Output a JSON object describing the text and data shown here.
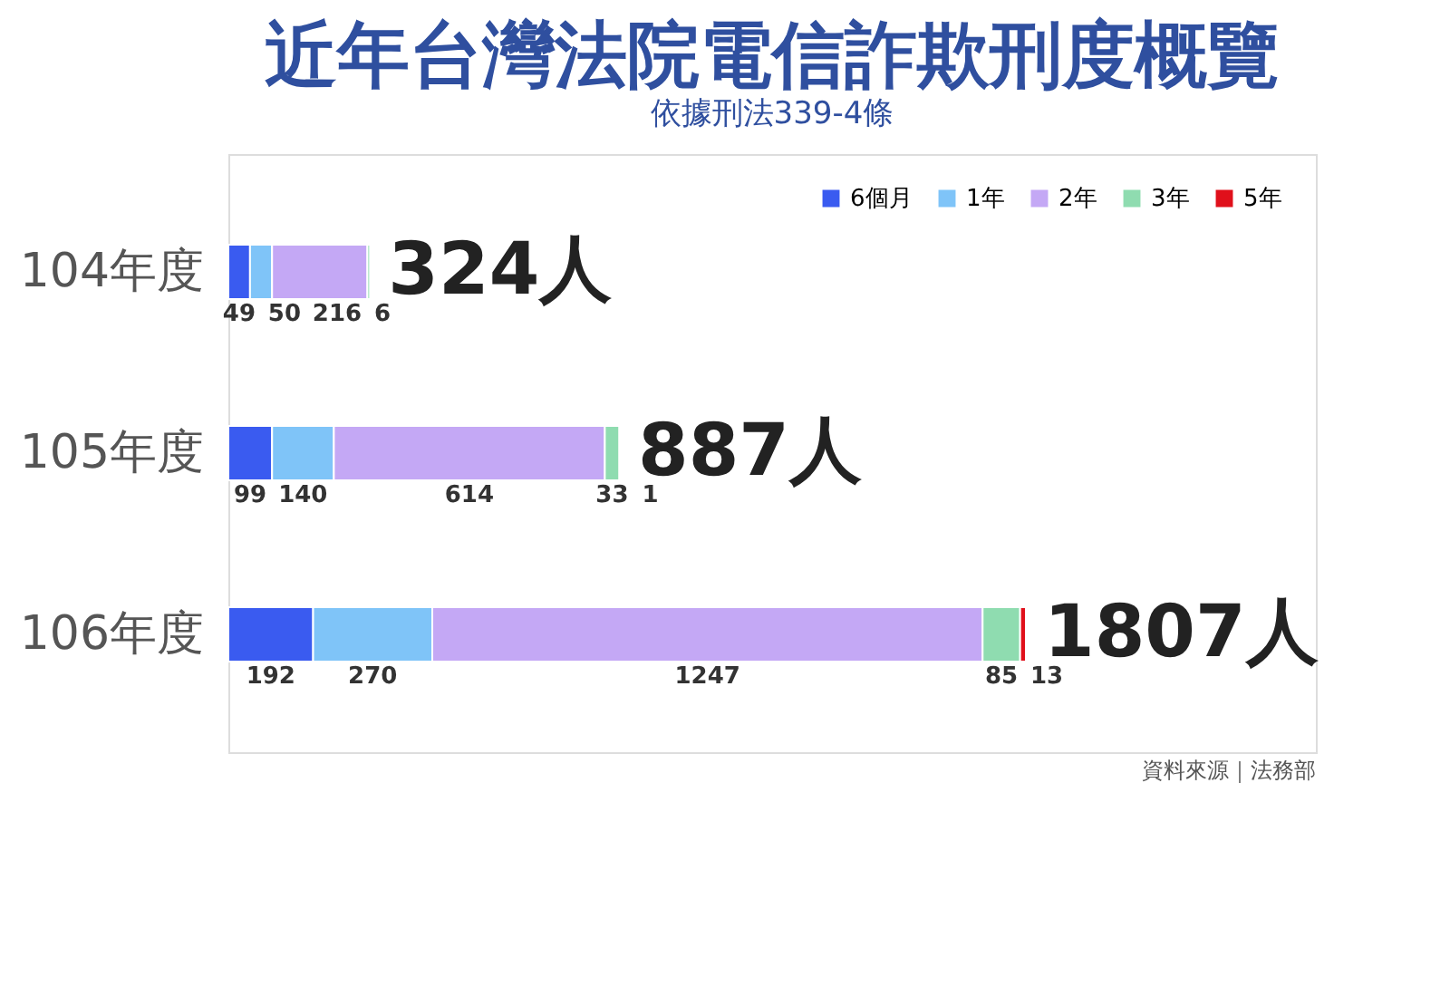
{
  "chart_data": {
    "type": "bar",
    "orientation": "horizontal",
    "stacked": true,
    "title": "近年台灣法院電信詐欺刑度概覽",
    "subtitle": "依據刑法339-4條",
    "categories": [
      "104年度",
      "105年度",
      "106年度"
    ],
    "series": [
      {
        "name": "6個月",
        "color": "#3a5bf0",
        "values": [
          49,
          99,
          192
        ]
      },
      {
        "name": "1年",
        "color": "#7fc4f8",
        "values": [
          50,
          140,
          270
        ]
      },
      {
        "name": "2年",
        "color": "#c4a8f5",
        "values": [
          216,
          614,
          1247
        ]
      },
      {
        "name": "3年",
        "color": "#8fdcb0",
        "values": [
          6,
          33,
          85
        ]
      },
      {
        "name": "5年",
        "color": "#e0101b",
        "values": [
          null,
          1,
          13
        ]
      }
    ],
    "data_labels": true,
    "totals": [
      "324人",
      "887人",
      "1807人"
    ],
    "legend": "top right",
    "tick_labels": "y",
    "annotations": [
      "資料來源｜法務部"
    ]
  }
}
